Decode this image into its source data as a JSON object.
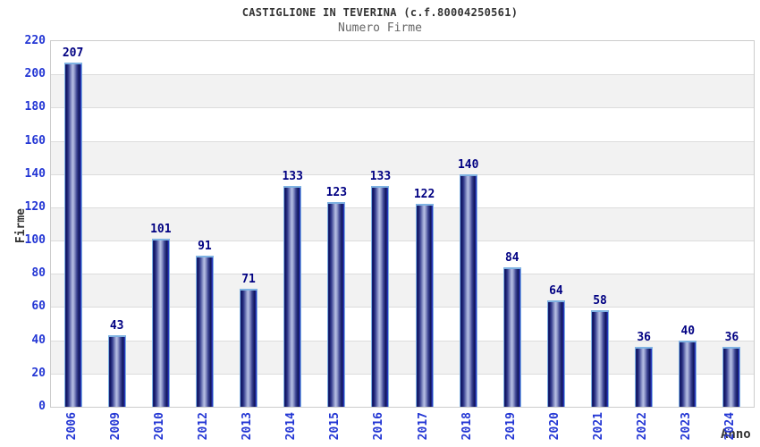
{
  "chart_data": {
    "type": "bar",
    "title": "CASTIGLIONE IN TEVERINA (c.f.80004250561)",
    "subtitle": "Numero Firme",
    "xlabel": "Anno",
    "ylabel": "Firme",
    "categories": [
      "2006",
      "2009",
      "2010",
      "2012",
      "2013",
      "2014",
      "2015",
      "2016",
      "2017",
      "2018",
      "2019",
      "2020",
      "2021",
      "2022",
      "2023",
      "2024"
    ],
    "values": [
      207,
      43,
      101,
      91,
      71,
      133,
      123,
      133,
      122,
      140,
      84,
      64,
      58,
      36,
      40,
      36
    ],
    "ylim": [
      0,
      220
    ],
    "ytick_step": 20,
    "grid": true,
    "legend_position": "none",
    "colors": {
      "title": "#333333",
      "subtitle": "#666666",
      "tick_label": "#2336d4",
      "value_label": "#000082",
      "band_gray": "#f2f2f2",
      "gridline": "#dcdcdc",
      "plot_border": "#cccccc",
      "bar_dark": "#101560",
      "bar_highlight": "#b7bfe4",
      "bar_edge": "#2e3ac0",
      "bar_cap": "#7fb2e2"
    }
  }
}
